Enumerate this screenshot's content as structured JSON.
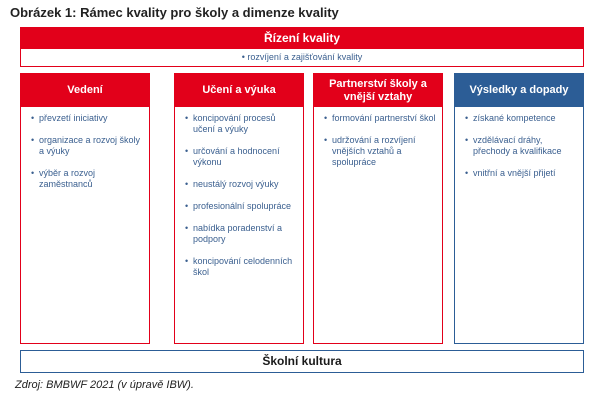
{
  "figure": {
    "title": "Obrázek 1: Rámec kvality pro školy a dimenze kvality",
    "source": "Zdroj: BMBWF 2021 (v úpravě IBW)."
  },
  "governance": {
    "title": "Řízení kvality",
    "subtitle": "• rozvíjení a zajišťování kvality"
  },
  "dimensions": [
    {
      "title": "Vedení",
      "items": [
        "převzetí iniciativy",
        "organizace a rozvoj školy a výuky",
        "výběr a rozvoj zaměstnanců"
      ]
    },
    {
      "title": "Učení a výuka",
      "items": [
        "koncipování procesů učení a výuky",
        "určování a hodnocení výkonu",
        "neustálý rozvoj výuky",
        "profesionální spolupráce",
        "nabídka poradenství a podpory",
        "koncipování celodenních škol"
      ]
    },
    {
      "title": "Partnerství školy a vnější vztahy",
      "items": [
        "formování partnerství škol",
        "udržování a rozvíjení vnějších vztahů a spolupráce"
      ]
    },
    {
      "title": "Výsledky a dopady",
      "items": [
        "získané kompetence",
        "vzdělávací dráhy, přechody a kvalifikace",
        "vnitřní a vnější přijetí"
      ]
    }
  ],
  "culture": {
    "title": "Školní kultura"
  },
  "colors": {
    "red": "#e2001a",
    "blue": "#2c5d96",
    "item_text": "#3a5f8f"
  }
}
